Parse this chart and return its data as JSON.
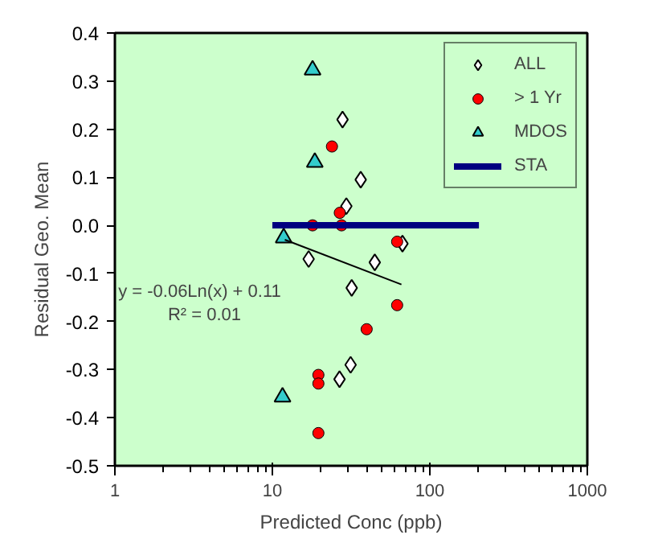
{
  "chart_data": {
    "type": "scatter",
    "xlabel": "Predicted Conc (ppb)",
    "ylabel": "Residual Geo. Mean",
    "log": "x",
    "xlim": [
      1,
      1000
    ],
    "xticks": [
      1,
      10,
      100,
      1000
    ],
    "ylim": [
      -0.5,
      0.4
    ],
    "yticks": [
      {
        "value": -0.5,
        "label": "-0.5"
      },
      {
        "value": -0.4,
        "label": "-0.4"
      },
      {
        "value": -0.3,
        "label": "-0.3"
      },
      {
        "value": -0.2,
        "label": "-0.2"
      },
      {
        "value": -0.1,
        "label": "-0.1"
      },
      {
        "value": 0,
        "label": "0.0"
      },
      {
        "value": 0.1,
        "label": "0.1"
      },
      {
        "value": 0.2,
        "label": "0.2"
      },
      {
        "value": 0.3,
        "label": "0.3"
      },
      {
        "value": 0.4,
        "label": "0.4"
      }
    ],
    "grid": false,
    "legend": "top right",
    "series": [
      {
        "name": "ALL",
        "marker": "diamond",
        "color": "#000000",
        "x": [
          27.9,
          36.4,
          29.5,
          67,
          17.0,
          44.7,
          31.9,
          31.4,
          26.7
        ],
        "values": [
          0.22,
          0.095,
          0.04,
          -0.038,
          -0.07,
          -0.077,
          -0.13,
          -0.29,
          -0.32
        ]
      },
      {
        "name": "> 1 Yr",
        "marker": "circle",
        "color": "#ff0000",
        "x": [
          23.9,
          26.8,
          18.0,
          27.5,
          62,
          62,
          39.7,
          19.6,
          19.6,
          19.6
        ],
        "values": [
          0.164,
          0.026,
          0.0,
          0.0,
          -0.034,
          -0.166,
          -0.216,
          -0.311,
          -0.329,
          -0.432
        ]
      },
      {
        "name": "MDOS",
        "marker": "triangle",
        "color": "#33cccc",
        "x": [
          18.0,
          18.6,
          11.8,
          11.6
        ],
        "values": [
          0.323,
          0.131,
          -0.026,
          -0.357
        ]
      },
      {
        "name": "STA",
        "type": "line",
        "color": "#000080",
        "x": [
          10,
          205
        ],
        "values": [
          0,
          0
        ]
      },
      {
        "type": "line",
        "color": "#000000",
        "x": [
          12,
          66
        ],
        "values": [
          -0.03,
          -0.123
        ]
      }
    ],
    "annotations": [
      "y = -0.06Ln(x) + 0.11",
      "R² = 0.01"
    ]
  }
}
